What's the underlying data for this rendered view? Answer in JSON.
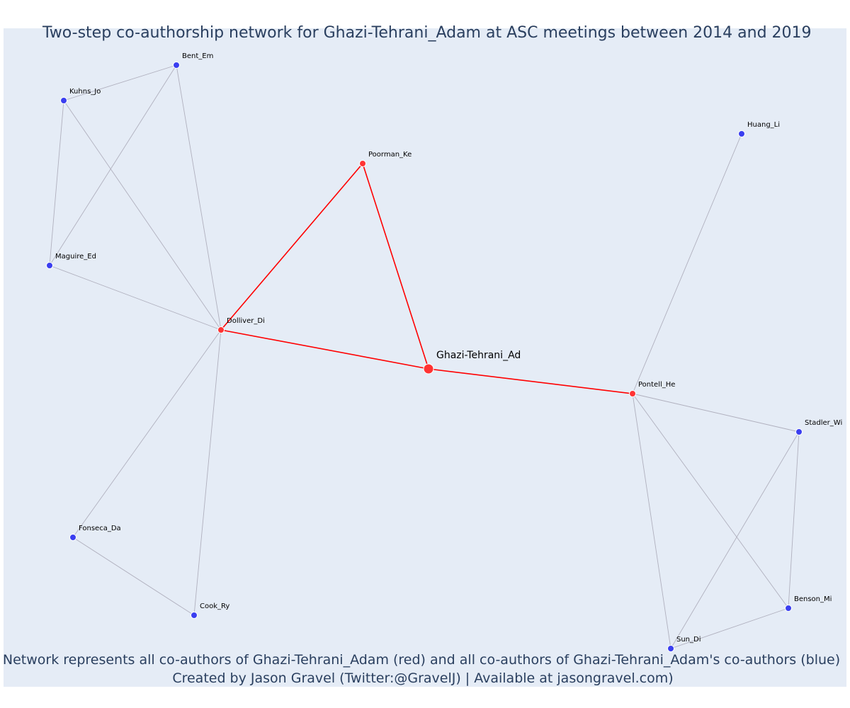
{
  "title": "Two-step co-authorship network for Ghazi-Tehrani_Adam at ASC meetings between 2014 and 2019",
  "caption_line1": "Network represents all co-authors of Ghazi-Tehrani_Adam (red) and all co-authors of Ghazi-Tehrani_Adam's co-authors (blue)",
  "caption_line2": "Created by Jason Gravel (Twitter:@GravelJ) | Available at jasongravel.com)",
  "colors": {
    "background": "#e5ecf6",
    "text": "#2a3f5f",
    "red_node": "#ff3333",
    "blue_node": "#3a3ef0",
    "red_edge": "#ff0000",
    "grey_edge": "#b0b0be"
  },
  "nodes": [
    {
      "id": "ghazi",
      "label": "Ghazi-Tehrani_Ad",
      "group": "ego"
    },
    {
      "id": "dolliver",
      "label": "Dolliver_Di",
      "group": "red"
    },
    {
      "id": "poorman",
      "label": "Poorman_Ke",
      "group": "red"
    },
    {
      "id": "pontell",
      "label": "Pontell_He",
      "group": "red"
    },
    {
      "id": "bent",
      "label": "Bent_Em",
      "group": "blue"
    },
    {
      "id": "kuhns",
      "label": "Kuhns_Jo",
      "group": "blue"
    },
    {
      "id": "maguire",
      "label": "Maguire_Ed",
      "group": "blue"
    },
    {
      "id": "fonseca",
      "label": "Fonseca_Da",
      "group": "blue"
    },
    {
      "id": "cook",
      "label": "Cook_Ry",
      "group": "blue"
    },
    {
      "id": "huang",
      "label": "Huang_Li",
      "group": "blue"
    },
    {
      "id": "stadler",
      "label": "Stadler_Wi",
      "group": "blue"
    },
    {
      "id": "benson",
      "label": "Benson_Mi",
      "group": "blue"
    },
    {
      "id": "sun",
      "label": "Sun_Di",
      "group": "blue"
    }
  ],
  "edges": [
    {
      "source": "ghazi",
      "target": "dolliver",
      "type": "red"
    },
    {
      "source": "ghazi",
      "target": "poorman",
      "type": "red"
    },
    {
      "source": "ghazi",
      "target": "pontell",
      "type": "red"
    },
    {
      "source": "dolliver",
      "target": "poorman",
      "type": "red"
    },
    {
      "source": "kuhns",
      "target": "bent",
      "type": "grey"
    },
    {
      "source": "kuhns",
      "target": "maguire",
      "type": "grey"
    },
    {
      "source": "kuhns",
      "target": "dolliver",
      "type": "grey"
    },
    {
      "source": "bent",
      "target": "maguire",
      "type": "grey"
    },
    {
      "source": "bent",
      "target": "dolliver",
      "type": "grey"
    },
    {
      "source": "maguire",
      "target": "dolliver",
      "type": "grey"
    },
    {
      "source": "dolliver",
      "target": "fonseca",
      "type": "grey"
    },
    {
      "source": "dolliver",
      "target": "cook",
      "type": "grey"
    },
    {
      "source": "fonseca",
      "target": "cook",
      "type": "grey"
    },
    {
      "source": "pontell",
      "target": "huang",
      "type": "grey"
    },
    {
      "source": "pontell",
      "target": "stadler",
      "type": "grey"
    },
    {
      "source": "pontell",
      "target": "benson",
      "type": "grey"
    },
    {
      "source": "pontell",
      "target": "sun",
      "type": "grey"
    },
    {
      "source": "stadler",
      "target": "benson",
      "type": "grey"
    },
    {
      "source": "stadler",
      "target": "sun",
      "type": "grey"
    },
    {
      "source": "benson",
      "target": "sun",
      "type": "grey"
    }
  ]
}
